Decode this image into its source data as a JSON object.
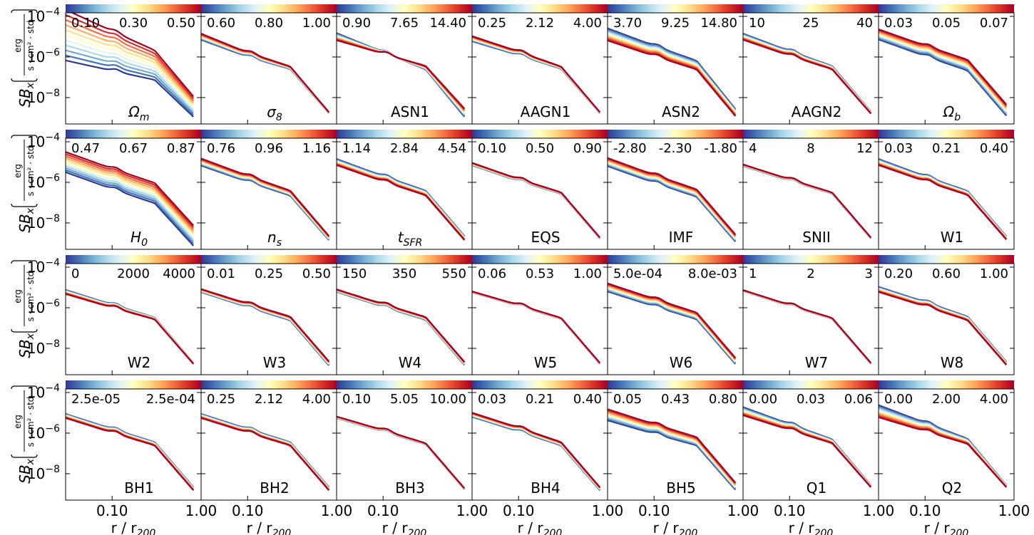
{
  "figure": {
    "ylabel": {
      "main": "SB",
      "sub": "x",
      "unit_top": "erg",
      "unit_bottom": "s · cm² · std"
    },
    "xlabel": {
      "main": "r / r",
      "sub": "200"
    },
    "xticks": [
      "0.10",
      "1.00"
    ],
    "yticks": [
      {
        "base": "10",
        "exp": "−4",
        "value": 0.0001
      },
      {
        "base": "10",
        "exp": "−6",
        "value": 1e-06
      },
      {
        "base": "10",
        "exp": "−8",
        "value": 1e-08
      }
    ],
    "colormap": [
      "#313695",
      "#4575b4",
      "#74add1",
      "#abd9e9",
      "#e0f3f8",
      "#ffffbf",
      "#fee090",
      "#fdae61",
      "#f46d43",
      "#d73027",
      "#a50026"
    ]
  },
  "chart_data": {
    "type": "line",
    "xscale": "log",
    "yscale": "log",
    "xlim": [
      0.03,
      1.0
    ],
    "ylim": [
      5e-10,
      0.00015
    ],
    "panels": [
      {
        "label": "Ωm",
        "cb_ticks": [
          "0.10",
          "0.30",
          "0.50"
        ],
        "profile": [
          [
            0.03,
            1.2e-05
          ],
          [
            0.1,
            2e-06
          ],
          [
            0.3,
            4e-07
          ],
          [
            0.85,
            3e-09
          ]
        ],
        "spread": [
          2.5,
          1.0
        ],
        "order": 1
      },
      {
        "label": "σ8",
        "cb_ticks": [
          "0.60",
          "0.80",
          "1.00"
        ],
        "profile": [
          [
            0.03,
            1e-05
          ],
          [
            0.1,
            1.3e-06
          ],
          [
            0.3,
            3e-07
          ],
          [
            0.85,
            1.5e-09
          ]
        ],
        "spread": [
          0.3,
          0.05
        ],
        "order": 1
      },
      {
        "label": "ASN1",
        "cb_ticks": [
          "0.90",
          "7.65",
          "14.40"
        ],
        "profile": [
          [
            0.03,
            1e-05
          ],
          [
            0.1,
            1.6e-06
          ],
          [
            0.3,
            3e-07
          ],
          [
            0.85,
            1.5e-09
          ]
        ],
        "spread": [
          0.35,
          -0.4
        ],
        "order": -1
      },
      {
        "label": "AAGN1",
        "cb_ticks": [
          "0.25",
          "2.12",
          "4.00"
        ],
        "profile": [
          [
            0.03,
            8e-06
          ],
          [
            0.1,
            1.5e-06
          ],
          [
            0.3,
            3e-07
          ],
          [
            0.85,
            1.5e-09
          ]
        ],
        "spread": [
          0.25,
          0.05
        ],
        "order": 1
      },
      {
        "label": "ASN2",
        "cb_ticks": [
          "3.70",
          "9.25",
          "14.80"
        ],
        "profile": [
          [
            0.03,
            1.3e-05
          ],
          [
            0.1,
            2e-06
          ],
          [
            0.3,
            4e-07
          ],
          [
            0.85,
            1.5e-09
          ]
        ],
        "spread": [
          0.6,
          0.35
        ],
        "order": -1
      },
      {
        "label": "AAGN2",
        "cb_ticks": [
          "10",
          "25",
          "40"
        ],
        "profile": [
          [
            0.03,
            1e-05
          ],
          [
            0.1,
            1.5e-06
          ],
          [
            0.3,
            3e-07
          ],
          [
            0.85,
            1.5e-09
          ]
        ],
        "spread": [
          0.3,
          0.1
        ],
        "order": -1
      },
      {
        "label": "Ωb",
        "cb_ticks": [
          "0.03",
          "0.05",
          "0.07"
        ],
        "profile": [
          [
            0.03,
            1.3e-05
          ],
          [
            0.1,
            2e-06
          ],
          [
            0.3,
            4e-07
          ],
          [
            0.85,
            2e-09
          ]
        ],
        "spread": [
          0.5,
          0.55
        ],
        "order": 1
      },
      {
        "label": "H0",
        "cb_ticks": [
          "0.47",
          "0.67",
          "0.87"
        ],
        "profile": [
          [
            0.03,
            1e-05
          ],
          [
            0.1,
            1.5e-06
          ],
          [
            0.3,
            3e-07
          ],
          [
            0.85,
            2e-09
          ]
        ],
        "spread": [
          1.0,
          1.0
        ],
        "order": 1
      },
      {
        "label": "ns",
        "cb_ticks": [
          "0.76",
          "0.96",
          "1.16"
        ],
        "profile": [
          [
            0.03,
            1e-05
          ],
          [
            0.1,
            1.5e-06
          ],
          [
            0.3,
            3e-07
          ],
          [
            0.85,
            1.5e-09
          ]
        ],
        "spread": [
          0.35,
          0.2
        ],
        "order": 1
      },
      {
        "label": "tSFR",
        "cb_ticks": [
          "1.14",
          "2.84",
          "4.54"
        ],
        "profile": [
          [
            0.03,
            1e-05
          ],
          [
            0.1,
            1.5e-06
          ],
          [
            0.3,
            3e-07
          ],
          [
            0.85,
            1.5e-09
          ]
        ],
        "spread": [
          0.3,
          0.2
        ],
        "order": -1
      },
      {
        "label": "EQS",
        "cb_ticks": [
          "0.10",
          "0.50",
          "0.90"
        ],
        "profile": [
          [
            0.03,
            8e-06
          ],
          [
            0.1,
            1.3e-06
          ],
          [
            0.3,
            3e-07
          ],
          [
            0.85,
            1.5e-09
          ]
        ],
        "spread": [
          0.12,
          0.05
        ],
        "order": 1
      },
      {
        "label": "IMF",
        "cb_ticks": [
          "-2.80",
          "-2.30",
          "-1.80"
        ],
        "profile": [
          [
            0.03,
            1e-05
          ],
          [
            0.1,
            1.5e-06
          ],
          [
            0.3,
            3e-07
          ],
          [
            0.85,
            1.5e-09
          ]
        ],
        "spread": [
          0.4,
          0.35
        ],
        "order": 1
      },
      {
        "label": "SNII",
        "cb_ticks": [
          "4",
          "8",
          "12"
        ],
        "profile": [
          [
            0.03,
            7e-06
          ],
          [
            0.1,
            1.3e-06
          ],
          [
            0.3,
            3e-07
          ],
          [
            0.85,
            1.5e-09
          ]
        ],
        "spread": [
          0.08,
          0.05
        ],
        "order": 1
      },
      {
        "label": "W1",
        "cb_ticks": [
          "0.03",
          "0.21",
          "0.40"
        ],
        "profile": [
          [
            0.03,
            1e-05
          ],
          [
            0.1,
            1.5e-06
          ],
          [
            0.3,
            3e-07
          ],
          [
            0.85,
            1.5e-09
          ]
        ],
        "spread": [
          0.3,
          0.15
        ],
        "order": -1
      },
      {
        "label": "W2",
        "cb_ticks": [
          "0",
          "2000",
          "4000"
        ],
        "profile": [
          [
            0.03,
            6e-06
          ],
          [
            0.1,
            1.2e-06
          ],
          [
            0.3,
            3e-07
          ],
          [
            0.85,
            1.5e-09
          ]
        ],
        "spread": [
          0.2,
          0.05
        ],
        "order": -1
      },
      {
        "label": "W3",
        "cb_ticks": [
          "0.01",
          "0.25",
          "0.50"
        ],
        "profile": [
          [
            0.03,
            7e-06
          ],
          [
            0.1,
            1.3e-06
          ],
          [
            0.3,
            3e-07
          ],
          [
            0.85,
            1.5e-09
          ]
        ],
        "spread": [
          0.15,
          0.2
        ],
        "order": 1
      },
      {
        "label": "W4",
        "cb_ticks": [
          "150",
          "350",
          "550"
        ],
        "profile": [
          [
            0.03,
            7e-06
          ],
          [
            0.1,
            1.3e-06
          ],
          [
            0.3,
            3e-07
          ],
          [
            0.85,
            1.5e-09
          ]
        ],
        "spread": [
          0.12,
          0.15
        ],
        "order": 1
      },
      {
        "label": "W5",
        "cb_ticks": [
          "0.06",
          "0.53",
          "1.00"
        ],
        "profile": [
          [
            0.03,
            6e-06
          ],
          [
            0.1,
            1.3e-06
          ],
          [
            0.3,
            3e-07
          ],
          [
            0.85,
            1.5e-09
          ]
        ],
        "spread": [
          0.05,
          0.05
        ],
        "order": 1
      },
      {
        "label": "W6",
        "cb_ticks": [
          "5.0e-04",
          "8.0e-03"
        ],
        "profile": [
          [
            0.03,
            1e-05
          ],
          [
            0.1,
            1.8e-06
          ],
          [
            0.3,
            4e-07
          ],
          [
            0.85,
            2e-09
          ]
        ],
        "spread": [
          0.4,
          0.3
        ],
        "order": 1
      },
      {
        "label": "W7",
        "cb_ticks": [
          "1",
          "2",
          "3"
        ],
        "profile": [
          [
            0.03,
            7e-06
          ],
          [
            0.1,
            1.3e-06
          ],
          [
            0.3,
            3e-07
          ],
          [
            0.85,
            1.5e-09
          ]
        ],
        "spread": [
          0.05,
          0.05
        ],
        "order": 1
      },
      {
        "label": "W8",
        "cb_ticks": [
          "0.20",
          "0.60",
          "1.00"
        ],
        "profile": [
          [
            0.03,
            8e-06
          ],
          [
            0.1,
            1.5e-06
          ],
          [
            0.3,
            3e-07
          ],
          [
            0.85,
            1.5e-09
          ]
        ],
        "spread": [
          0.25,
          0.15
        ],
        "order": -1
      },
      {
        "label": "BH1",
        "cb_ticks": [
          "2.5e-05",
          "2.5e-04"
        ],
        "profile": [
          [
            0.03,
            7e-06
          ],
          [
            0.1,
            1.3e-06
          ],
          [
            0.3,
            3e-07
          ],
          [
            0.85,
            1.5e-09
          ]
        ],
        "spread": [
          0.2,
          0.15
        ],
        "order": -1
      },
      {
        "label": "BH2",
        "cb_ticks": [
          "0.25",
          "2.12",
          "4.00"
        ],
        "profile": [
          [
            0.03,
            7e-06
          ],
          [
            0.1,
            1.3e-06
          ],
          [
            0.3,
            3e-07
          ],
          [
            0.85,
            1.5e-09
          ]
        ],
        "spread": [
          0.2,
          0.15
        ],
        "order": -1
      },
      {
        "label": "BH3",
        "cb_ticks": [
          "0.10",
          "5.05",
          "10.00"
        ],
        "profile": [
          [
            0.03,
            6e-06
          ],
          [
            0.1,
            1.3e-06
          ],
          [
            0.3,
            3e-07
          ],
          [
            0.85,
            1.5e-09
          ]
        ],
        "spread": [
          0.08,
          0.05
        ],
        "order": 1
      },
      {
        "label": "BH4",
        "cb_ticks": [
          "0.03",
          "0.21",
          "0.40"
        ],
        "profile": [
          [
            0.03,
            8e-06
          ],
          [
            0.1,
            1.5e-06
          ],
          [
            0.3,
            3e-07
          ],
          [
            0.85,
            1.5e-09
          ]
        ],
        "spread": [
          0.2,
          0.15
        ],
        "order": 1
      },
      {
        "label": "BH5",
        "cb_ticks": [
          "0.05",
          "0.43",
          "0.80"
        ],
        "profile": [
          [
            0.03,
            8e-06
          ],
          [
            0.1,
            1.6e-06
          ],
          [
            0.3,
            4e-07
          ],
          [
            0.85,
            2e-09
          ]
        ],
        "spread": [
          0.55,
          0.35
        ],
        "order": 1
      },
      {
        "label": "Q1",
        "cb_ticks": [
          "0.00",
          "0.03",
          "0.06"
        ],
        "profile": [
          [
            0.03,
            1.2e-05
          ],
          [
            0.1,
            2e-06
          ],
          [
            0.3,
            4e-07
          ],
          [
            0.85,
            2e-09
          ]
        ],
        "spread": [
          0.4,
          0.1
        ],
        "order": -1
      },
      {
        "label": "Q2",
        "cb_ticks": [
          "0.00",
          "2.00",
          "4.00"
        ],
        "profile": [
          [
            0.03,
            1.2e-05
          ],
          [
            0.1,
            2e-06
          ],
          [
            0.3,
            4e-07
          ],
          [
            0.85,
            2e-09
          ]
        ],
        "spread": [
          0.6,
          0.1
        ],
        "order": -1
      }
    ]
  }
}
